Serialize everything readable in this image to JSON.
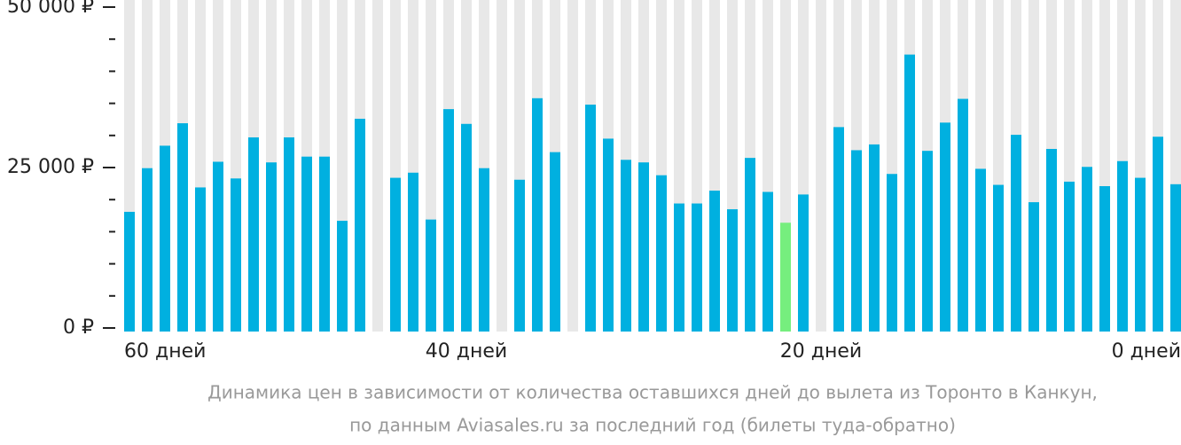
{
  "chart_data": {
    "type": "bar",
    "caption": [
      "Динамика цен в зависимости от количества оставшихся дней до вылета из Торонто в Канкун,",
      "по данным Aviasales.ru за последний год (билеты туда-обратно)"
    ],
    "categories": [
      "60 дней",
      null,
      null,
      null,
      null,
      null,
      null,
      null,
      null,
      null,
      null,
      null,
      null,
      null,
      null,
      null,
      null,
      null,
      null,
      "40 дней",
      null,
      null,
      null,
      null,
      null,
      null,
      null,
      null,
      null,
      null,
      null,
      null,
      null,
      null,
      null,
      null,
      null,
      null,
      null,
      "20 дней",
      null,
      null,
      null,
      null,
      null,
      null,
      null,
      null,
      null,
      null,
      null,
      null,
      null,
      null,
      null,
      null,
      null,
      null,
      null,
      "0 дней"
    ],
    "values": [
      18100,
      24900,
      28400,
      31900,
      21900,
      25900,
      23300,
      29700,
      25800,
      29700,
      26700,
      26700,
      16700,
      32600,
      null,
      23400,
      24200,
      16900,
      34100,
      31800,
      24900,
      null,
      23100,
      35800,
      27400,
      null,
      34800,
      29500,
      26200,
      25800,
      23800,
      19400,
      19400,
      21400,
      18500,
      26500,
      21200,
      16400,
      20800,
      null,
      31300,
      27700,
      28600,
      24000,
      42600,
      27600,
      32000,
      35700,
      24800,
      22300,
      30100,
      19600,
      27900,
      22800,
      25100,
      22100,
      26000,
      23400,
      29800,
      22400
    ],
    "color": "#00b0e0",
    "highlight": {
      "index": 37,
      "color": "#76ee7e"
    },
    "column_color": "#e8e8e8",
    "ylim": [
      0,
      50000
    ],
    "yticks": [
      {
        "value": 0,
        "label": "0 ₽"
      },
      {
        "value": 25000,
        "label": "25 000 ₽"
      },
      {
        "value": 50000,
        "label": "50 000 ₽"
      }
    ],
    "minor_yticks": [
      5000,
      10000,
      15000,
      20000,
      30000,
      35000,
      40000,
      45000
    ]
  }
}
